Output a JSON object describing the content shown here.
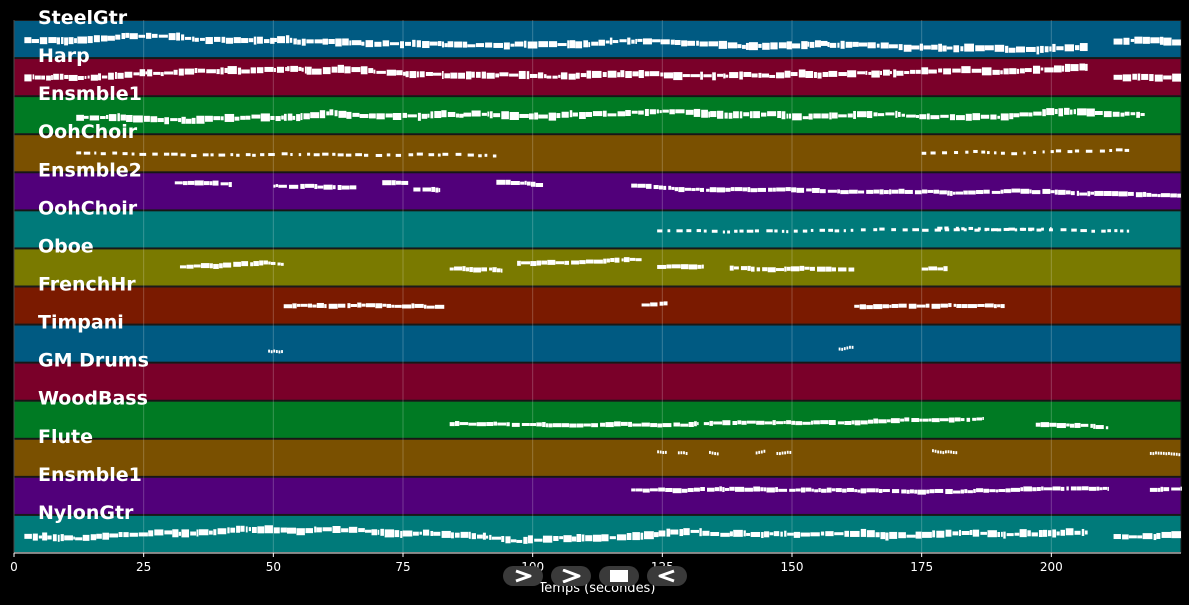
{
  "x_axis": {
    "title": "Temps (secondes)",
    "ticks": [
      "0",
      "25",
      "50",
      "75",
      "100",
      "125",
      "150",
      "175",
      "200"
    ],
    "tick_values": [
      0,
      25,
      50,
      75,
      100,
      125,
      150,
      175,
      200
    ],
    "range": [
      0,
      225
    ]
  },
  "tracks": [
    {
      "name": "SteelGtr",
      "color": "#005a82",
      "pattern": "dense",
      "segments": [
        [
          2,
          207,
          0.5
        ],
        [
          212,
          225,
          0.55
        ]
      ]
    },
    {
      "name": "Harp",
      "color": "#7a0029",
      "pattern": "dense",
      "segments": [
        [
          2,
          207,
          0.55
        ],
        [
          212,
          225,
          0.5
        ]
      ]
    },
    {
      "name": "Ensmble1",
      "color": "#007a23",
      "pattern": "dense",
      "segments": [
        [
          12,
          218,
          0.55
        ]
      ]
    },
    {
      "name": "OohChoir",
      "color": "#7a5000",
      "pattern": "sparse",
      "segments": [
        [
          12,
          93,
          0.5
        ],
        [
          175,
          215,
          0.5
        ]
      ]
    },
    {
      "name": "Ensmble2",
      "color": "#51007a",
      "pattern": "melody",
      "segments": [
        [
          31,
          42,
          0.28
        ],
        [
          50,
          66,
          0.35
        ],
        [
          71,
          76,
          0.28
        ],
        [
          77,
          82,
          0.45
        ],
        [
          93,
          102,
          0.28
        ],
        [
          119,
          225,
          0.35
        ]
      ]
    },
    {
      "name": "OohChoir",
      "color": "#007a7a",
      "pattern": "sparse",
      "segments": [
        [
          124,
          200,
          0.55
        ],
        [
          178,
          215,
          0.45
        ]
      ]
    },
    {
      "name": "Oboe",
      "color": "#7a7a00",
      "pattern": "melody",
      "segments": [
        [
          32,
          52,
          0.5
        ],
        [
          84,
          94,
          0.55
        ],
        [
          97,
          121,
          0.4
        ],
        [
          124,
          133,
          0.5
        ],
        [
          138,
          162,
          0.5
        ],
        [
          175,
          180,
          0.55
        ]
      ]
    },
    {
      "name": "FrenchHr",
      "color": "#7a1a00",
      "pattern": "melody",
      "segments": [
        [
          52,
          83,
          0.5
        ],
        [
          121,
          126,
          0.5
        ],
        [
          162,
          191,
          0.5
        ]
      ]
    },
    {
      "name": "Timpani",
      "color": "#005a82",
      "pattern": "dots",
      "segments": [
        [
          49,
          52,
          0.7
        ],
        [
          159,
          162,
          0.65
        ]
      ]
    },
    {
      "name": "GM Drums",
      "color": "#7a0029",
      "pattern": "none",
      "segments": []
    },
    {
      "name": "WoodBass",
      "color": "#007a23",
      "pattern": "melody",
      "segments": [
        [
          84,
          132,
          0.6
        ],
        [
          133,
          187,
          0.6
        ],
        [
          197,
          211,
          0.65
        ]
      ]
    },
    {
      "name": "Flute",
      "color": "#7a5000",
      "pattern": "dots",
      "segments": [
        [
          124,
          126,
          0.35
        ],
        [
          128,
          130,
          0.38
        ],
        [
          134,
          136,
          0.35
        ],
        [
          143,
          145,
          0.38
        ],
        [
          147,
          150,
          0.4
        ],
        [
          177,
          182,
          0.3
        ],
        [
          219,
          225,
          0.38
        ]
      ]
    },
    {
      "name": "Ensmble1",
      "color": "#51007a",
      "pattern": "melody",
      "segments": [
        [
          119,
          211,
          0.35
        ],
        [
          219,
          225,
          0.35
        ]
      ]
    },
    {
      "name": "NylonGtr",
      "color": "#007a7a",
      "pattern": "dense",
      "segments": [
        [
          2,
          207,
          0.55
        ],
        [
          212,
          225,
          0.55
        ]
      ]
    }
  ],
  "controls": [
    {
      "label": "play-forward",
      "icon": "play-triangle-icon"
    },
    {
      "label": "next",
      "icon": "chevron-right-icon"
    },
    {
      "label": "stop",
      "icon": "stop-square-icon"
    },
    {
      "label": "rewind",
      "icon": "play-back-icon"
    }
  ]
}
